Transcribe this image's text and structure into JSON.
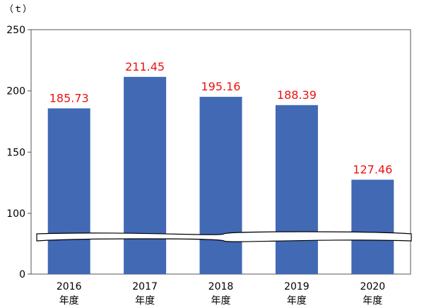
{
  "chart_data": {
    "type": "bar",
    "unit_label": "（ｔ）",
    "categories": [
      {
        "year": "2016",
        "suffix": "年度"
      },
      {
        "year": "2017",
        "suffix": "年度"
      },
      {
        "year": "2018",
        "suffix": "年度"
      },
      {
        "year": "2019",
        "suffix": "年度"
      },
      {
        "year": "2020",
        "suffix": "年度"
      }
    ],
    "values": [
      185.73,
      211.45,
      195.16,
      188.39,
      127.46
    ],
    "value_labels": [
      "185.73",
      "211.45",
      "195.16",
      "188.39",
      "127.46"
    ],
    "y_ticks": [
      "0",
      "100",
      "150",
      "200",
      "250"
    ],
    "ylim": [
      0,
      250
    ],
    "axis_break": true,
    "bar_color": "#4169b4",
    "label_color": "#ee1111",
    "grid": false
  }
}
